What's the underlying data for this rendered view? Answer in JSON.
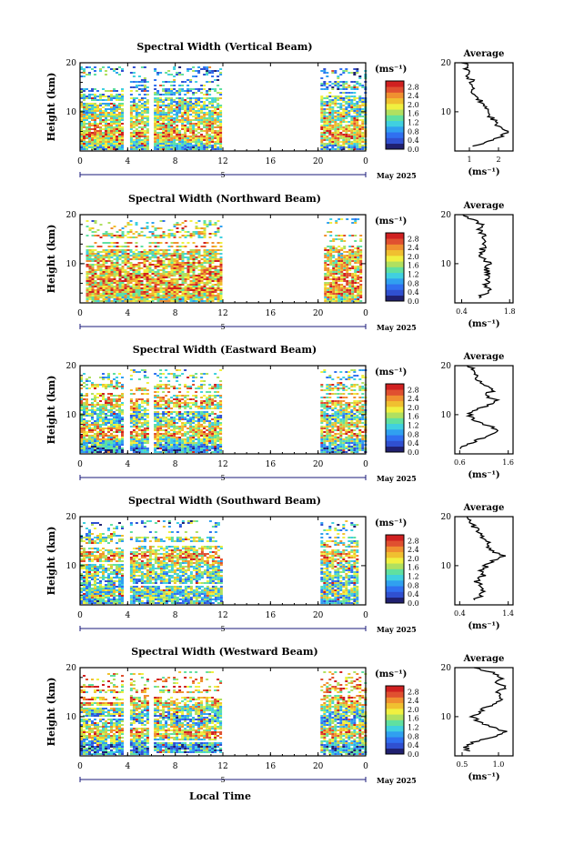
{
  "figure": {
    "local_time_label": "Local Time",
    "date_label": "May 2025",
    "date_marker": "5",
    "unit_label": "(ms⁻¹)",
    "ylabel": "Height (km)",
    "average_title": "Average",
    "colorbar_ticks": [
      "0.0",
      "0.4",
      "0.8",
      "1.2",
      "1.6",
      "2.0",
      "2.4",
      "2.8"
    ],
    "colormap": [
      "#202070",
      "#3050d0",
      "#3070f0",
      "#30a0f0",
      "#40d0e0",
      "#60e0a0",
      "#b0e060",
      "#f0f040",
      "#f0c030",
      "#f09030",
      "#e05030",
      "#d02020"
    ]
  },
  "chart_data": [
    {
      "type": "heatmap",
      "title": "Spectral Width (Vertical Beam)",
      "xlabel": "Local Time",
      "ylabel": "Height (km)",
      "xlim": [
        0,
        24
      ],
      "ylim": [
        2,
        20
      ],
      "x_ticks": [
        "0",
        "4",
        "8",
        "12",
        "16",
        "20",
        "0"
      ],
      "y_ticks": [
        "10",
        "20"
      ],
      "data_intervals_h": [
        [
          0,
          3.6
        ],
        [
          4.2,
          5.8
        ],
        [
          6.2,
          11.8
        ],
        [
          20.2,
          24
        ]
      ],
      "avg_profile": {
        "xlim": [
          0.5,
          2.5
        ],
        "x_ticks": [
          "1",
          "2"
        ],
        "x_tick_values": [
          1,
          2
        ],
        "heights_km": [
          3,
          4,
          5,
          6,
          7,
          8,
          9,
          10,
          11,
          12,
          13,
          14,
          15,
          16,
          17,
          18,
          19,
          20
        ],
        "values": [
          1.1,
          1.7,
          2.1,
          2.3,
          2.0,
          1.9,
          1.7,
          1.6,
          1.5,
          1.4,
          1.3,
          1.1,
          1.05,
          1.1,
          1.0,
          0.9,
          0.9,
          0.8
        ]
      }
    },
    {
      "type": "heatmap",
      "title": "Spectral Width (Northward Beam)",
      "xlabel": "Local Time",
      "ylabel": "Height (km)",
      "xlim": [
        0,
        24
      ],
      "ylim": [
        2,
        20
      ],
      "x_ticks": [
        "0",
        "4",
        "8",
        "12",
        "16",
        "20",
        "0"
      ],
      "y_ticks": [
        "10",
        "20"
      ],
      "data_intervals_h": [
        [
          0.5,
          11.8
        ],
        [
          20.5,
          23.5
        ]
      ],
      "avg_profile": {
        "xlim": [
          0.2,
          1.9
        ],
        "x_ticks": [
          "0.4",
          "1.8"
        ],
        "x_tick_values": [
          0.4,
          1.8
        ],
        "heights_km": [
          3,
          4,
          5,
          6,
          7,
          8,
          9,
          10,
          11,
          12,
          13,
          14,
          15,
          16,
          17,
          18,
          19,
          20
        ],
        "values": [
          0.9,
          1.1,
          1.2,
          1.1,
          1.2,
          1.15,
          1.1,
          1.2,
          1.05,
          0.95,
          1.0,
          1.1,
          0.95,
          1.05,
          0.9,
          0.95,
          0.7,
          0.5
        ]
      }
    },
    {
      "type": "heatmap",
      "title": "Spectral Width (Eastward Beam)",
      "xlabel": "Local Time",
      "ylabel": "Height (km)",
      "xlim": [
        0,
        24
      ],
      "ylim": [
        2,
        20
      ],
      "x_ticks": [
        "0",
        "4",
        "8",
        "12",
        "16",
        "20",
        "0"
      ],
      "y_ticks": [
        "10",
        "20"
      ],
      "data_intervals_h": [
        [
          0,
          3.6
        ],
        [
          4.2,
          5.8
        ],
        [
          6.2,
          11.8
        ],
        [
          20.2,
          24
        ]
      ],
      "avg_profile": {
        "xlim": [
          0.5,
          1.7
        ],
        "x_ticks": [
          "0.6",
          "1.6"
        ],
        "x_tick_values": [
          0.6,
          1.6
        ],
        "heights_km": [
          3,
          4,
          5,
          6,
          7,
          8,
          9,
          10,
          11,
          12,
          13,
          14,
          15,
          16,
          17,
          18,
          19,
          20
        ],
        "values": [
          0.6,
          0.75,
          1.0,
          1.3,
          1.4,
          1.1,
          0.85,
          0.8,
          0.95,
          1.2,
          1.35,
          1.1,
          1.3,
          1.15,
          1.0,
          0.9,
          0.85,
          0.8
        ]
      }
    },
    {
      "type": "heatmap",
      "title": "Spectral Width (Southward Beam)",
      "xlabel": "Local Time",
      "ylabel": "Height (km)",
      "xlim": [
        0,
        24
      ],
      "ylim": [
        2,
        20
      ],
      "x_ticks": [
        "0",
        "4",
        "8",
        "12",
        "16",
        "20",
        "0"
      ],
      "y_ticks": [
        "10",
        "20"
      ],
      "data_intervals_h": [
        [
          0,
          3.6
        ],
        [
          4.2,
          11.8
        ],
        [
          20.2,
          23.2
        ]
      ],
      "avg_profile": {
        "xlim": [
          0.3,
          1.5
        ],
        "x_ticks": [
          "0.4",
          "1.4"
        ],
        "x_tick_values": [
          0.4,
          1.4
        ],
        "heights_km": [
          3,
          4,
          5,
          6,
          7,
          8,
          9,
          10,
          11,
          12,
          13,
          14,
          15,
          16,
          17,
          18,
          19,
          20
        ],
        "values": [
          0.7,
          0.85,
          0.9,
          0.8,
          0.75,
          0.9,
          0.85,
          0.95,
          1.05,
          1.3,
          1.1,
          1.0,
          0.95,
          0.85,
          0.8,
          0.7,
          0.55,
          0.6
        ]
      }
    },
    {
      "type": "heatmap",
      "title": "Spectral Width (Westward Beam)",
      "xlabel": "Local Time",
      "ylabel": "Height (km)",
      "xlim": [
        0,
        24
      ],
      "ylim": [
        2,
        20
      ],
      "x_ticks": [
        "0",
        "4",
        "8",
        "12",
        "16",
        "20",
        "0"
      ],
      "y_ticks": [
        "10",
        "20"
      ],
      "data_intervals_h": [
        [
          0,
          3.6
        ],
        [
          4.2,
          5.8
        ],
        [
          6.2,
          11.8
        ],
        [
          20.2,
          24
        ]
      ],
      "avg_profile": {
        "xlim": [
          0.4,
          1.2
        ],
        "x_ticks": [
          "0.5",
          "1.0"
        ],
        "x_tick_values": [
          0.5,
          1.0
        ],
        "heights_km": [
          3,
          4,
          5,
          6,
          7,
          8,
          9,
          10,
          11,
          12,
          13,
          14,
          15,
          16,
          17,
          18,
          19,
          20
        ],
        "values": [
          0.6,
          0.55,
          0.7,
          0.95,
          1.1,
          0.9,
          0.7,
          0.65,
          0.75,
          0.85,
          1.0,
          1.05,
          0.95,
          1.1,
          1.0,
          1.05,
          0.9,
          0.7
        ]
      }
    }
  ]
}
